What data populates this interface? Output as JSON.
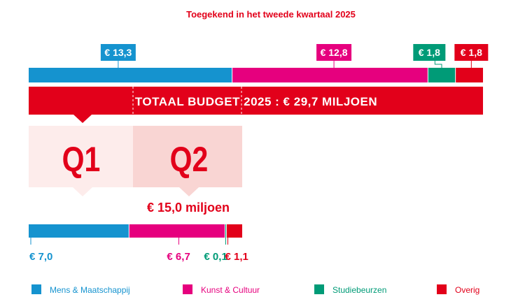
{
  "colors": {
    "mens": "#1593cf",
    "kunst": "#e6007e",
    "studie": "#009b77",
    "overig": "#e2001a",
    "q1_bg": "#fdeceb",
    "q2_bg": "#f9d5d3",
    "title": "#e2001a"
  },
  "chart_data": [
    {
      "type": "bar",
      "title": "Toegekend in het tweede kwartaal 2025",
      "total_label": "TOTAAL BUDGET 2025 : € 29,7 MILJOEN",
      "categories": [
        "Mens & Maatschappij",
        "Kunst & Cultuur",
        "Studiebeurzen",
        "Overig"
      ],
      "values": [
        13.3,
        12.8,
        1.8,
        1.8
      ],
      "value_labels": [
        "€ 13,3",
        "€ 12,8",
        "€ 1,8",
        "€ 1,8"
      ],
      "total": 29.7
    },
    {
      "type": "bar",
      "title": "€ 15,0 miljoen",
      "categories": [
        "Mens & Maatschappij",
        "Kunst & Cultuur",
        "Studiebeurzen",
        "Overig"
      ],
      "values": [
        7.0,
        6.7,
        0.1,
        1.1
      ],
      "value_labels": [
        "€ 7,0",
        "€ 6,7",
        "€ 0,1",
        "€ 1,1"
      ],
      "total": 15.0
    }
  ],
  "quarters": [
    "Q1",
    "Q2"
  ],
  "legend": [
    {
      "label": "Mens & Maatschappij",
      "color": "#1593cf"
    },
    {
      "label": "Kunst & Cultuur",
      "color": "#e6007e"
    },
    {
      "label": "Studiebeurzen",
      "color": "#009b77"
    },
    {
      "label": "Overig",
      "color": "#e2001a"
    }
  ]
}
